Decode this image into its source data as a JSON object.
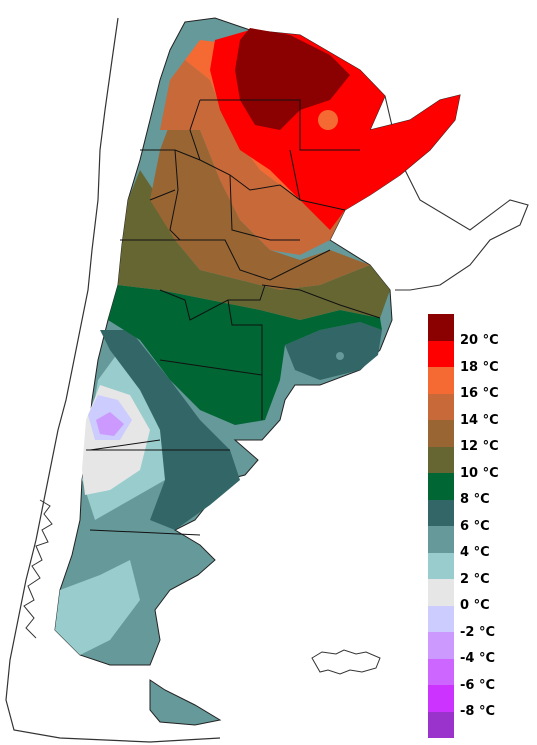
{
  "legend": {
    "entries": [
      {
        "label": "20 °C",
        "color": "#8b0000"
      },
      {
        "label": "18 °C",
        "color": "#ff0000"
      },
      {
        "label": "16 °C",
        "color": "#f56a32"
      },
      {
        "label": "14 °C",
        "color": "#c8693a"
      },
      {
        "label": "12 °C",
        "color": "#996633"
      },
      {
        "label": "10 °C",
        "color": "#666633"
      },
      {
        "label": "8 °C",
        "color": "#006633"
      },
      {
        "label": "6 °C",
        "color": "#336666"
      },
      {
        "label": "4 °C",
        "color": "#669999"
      },
      {
        "label": "2 °C",
        "color": "#99cccc"
      },
      {
        "label": "0 °C",
        "color": "#e6e6e6"
      },
      {
        "label": "-2 °C",
        "color": "#ccccff"
      },
      {
        "label": "-4 °C",
        "color": "#cc99ff"
      },
      {
        "label": "-6 °C",
        "color": "#cc66ff"
      },
      {
        "label": "-8 °C",
        "color": "#cc33ff"
      },
      {
        "label": "",
        "color": "#9933cc"
      }
    ]
  }
}
